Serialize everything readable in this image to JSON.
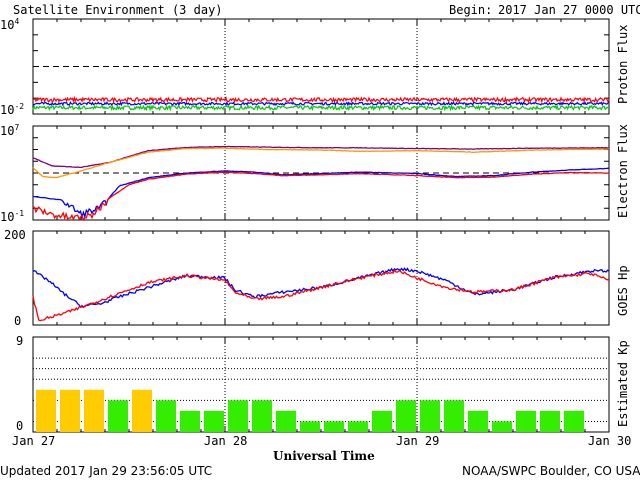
{
  "header": {
    "title": "Satellite Environment (3 day)",
    "begin_label": "Begin:",
    "begin_date": "2017 Jan 27 0000 UTC"
  },
  "footer": {
    "updated": "Updated 2017 Jan 29 23:56:05 UTC",
    "credit": "NOAA/SWPC Boulder, CO USA"
  },
  "xaxis": {
    "title": "Universal Time",
    "ticks": [
      "Jan 27",
      "Jan 28",
      "Jan 29",
      "Jan 30"
    ],
    "range_days": [
      0,
      3
    ]
  },
  "colors": {
    "red": "#ff0000",
    "blue": "#0000ff",
    "green": "#00cc00",
    "orange": "#ff9900",
    "purple": "#800080",
    "kp_quiet": "#33ee00",
    "kp_active": "#ffcc00"
  },
  "chart_data": [
    {
      "type": "line",
      "ylabel": "Proton Flux",
      "yscale": "log",
      "ylim": [
        0.01,
        10000
      ],
      "ytick_labels": {
        "top_base": "10",
        "top_exp": "4",
        "bottom_base": "10",
        "bottom_exp": "-2"
      },
      "threshold": 10,
      "series": [
        {
          "color": "red",
          "base": 0.08,
          "noise": 0.12
        },
        {
          "color": "blue",
          "base": 0.045,
          "noise": 0.08
        },
        {
          "color": "green",
          "base": 0.025,
          "noise": 0.12
        }
      ]
    },
    {
      "type": "line",
      "ylabel": "Electron Flux",
      "yscale": "log",
      "ylim": [
        0.1,
        10000000
      ],
      "ytick_labels": {
        "top_base": "10",
        "top_exp": "7",
        "bottom_base": "10",
        "bottom_exp": "-1"
      },
      "threshold": 1000,
      "series": [
        {
          "color": "purple",
          "x": [
            0,
            0.1,
            0.25,
            0.4,
            0.6,
            0.8,
            1.0,
            1.2,
            1.5,
            1.7,
            2.0,
            2.3,
            2.6,
            3.0
          ],
          "y": [
            20000,
            4000,
            3000,
            8000,
            80000,
            150000,
            180000,
            160000,
            140000,
            140000,
            120000,
            110000,
            130000,
            140000
          ]
        },
        {
          "color": "orange",
          "x": [
            0,
            0.05,
            0.12,
            0.25,
            0.4,
            0.6,
            0.8,
            1.0,
            1.2,
            1.5,
            1.7,
            2.0,
            2.3,
            2.6,
            3.0
          ],
          "y": [
            3000,
            500,
            400,
            1500,
            8000,
            60000,
            120000,
            130000,
            100000,
            90000,
            70000,
            80000,
            60000,
            90000,
            110000
          ]
        },
        {
          "color": "blue",
          "x": [
            0,
            0.15,
            0.25,
            0.35,
            0.45,
            0.6,
            0.8,
            1.0,
            1.15,
            1.3,
            1.5,
            1.7,
            2.0,
            2.2,
            2.4,
            2.6,
            2.8,
            3.0
          ],
          "y": [
            10,
            5,
            0.3,
            1,
            80,
            400,
            1000,
            1500,
            1200,
            700,
            900,
            1200,
            900,
            500,
            600,
            1200,
            1800,
            2500
          ]
        },
        {
          "color": "red",
          "x": [
            0,
            0.1,
            0.2,
            0.3,
            0.4,
            0.5,
            0.6,
            0.8,
            1.0,
            1.15,
            1.3,
            1.5,
            1.7,
            2.0,
            2.2,
            2.4,
            2.6,
            2.8,
            3.0
          ],
          "y": [
            1,
            0.3,
            0.15,
            0.2,
            8,
            100,
            300,
            800,
            1200,
            900,
            600,
            700,
            900,
            600,
            400,
            450,
            800,
            1100,
            1000
          ]
        }
      ]
    },
    {
      "type": "line",
      "ylabel": "GOES Hp",
      "ylim": [
        0,
        200
      ],
      "ytick_labels": {
        "top": "200",
        "bottom": "0"
      },
      "series": [
        {
          "color": "blue",
          "x": [
            0,
            0.08,
            0.15,
            0.25,
            0.35,
            0.45,
            0.6,
            0.8,
            1.0,
            1.05,
            1.15,
            1.3,
            1.5,
            1.7,
            1.9,
            2.0,
            2.15,
            2.3,
            2.5,
            2.7,
            2.9,
            3.0
          ],
          "y": [
            115,
            95,
            70,
            40,
            45,
            60,
            80,
            105,
            100,
            75,
            60,
            70,
            80,
            100,
            120,
            115,
            95,
            65,
            75,
            100,
            115,
            115
          ]
        },
        {
          "color": "red",
          "x": [
            0,
            0.03,
            0.08,
            0.2,
            0.4,
            0.6,
            0.8,
            1.0,
            1.05,
            1.15,
            1.3,
            1.5,
            1.7,
            1.9,
            2.0,
            2.15,
            2.3,
            2.5,
            2.7,
            2.9,
            3.0
          ],
          "y": [
            60,
            10,
            15,
            30,
            60,
            90,
            105,
            95,
            70,
            55,
            60,
            80,
            100,
            115,
            100,
            80,
            70,
            75,
            100,
            110,
            95
          ]
        }
      ]
    },
    {
      "type": "bar",
      "ylabel": "Estimated Kp",
      "ylim": [
        0,
        9
      ],
      "ytick_labels": {
        "top": "9",
        "bottom": "0"
      },
      "interval_hours": 3,
      "values": [
        4,
        4,
        4,
        3,
        4,
        3,
        2,
        2,
        3,
        3,
        2,
        1,
        1,
        1,
        2,
        3,
        3,
        3,
        2,
        1,
        2,
        2,
        2
      ],
      "active_threshold": 4
    }
  ]
}
